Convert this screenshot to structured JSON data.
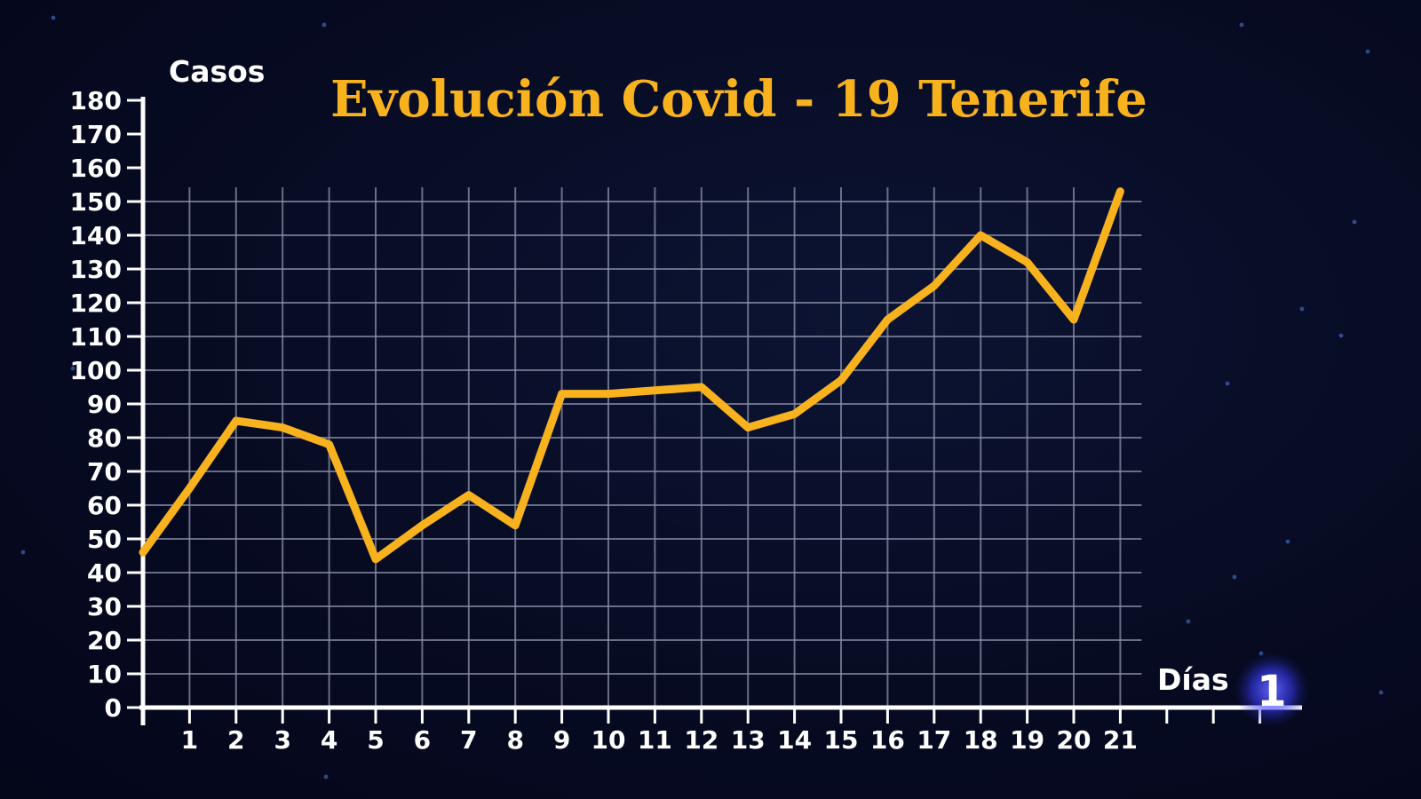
{
  "colors": {
    "background": "#060a22",
    "title": "#f7b21e",
    "line": "#f7b21e",
    "grid": "#8a8fa8",
    "axis": "#ffffff",
    "text": "#ffffff",
    "logo_glow": "#3a3cff"
  },
  "logo": {
    "text": "1"
  },
  "chart_data": {
    "type": "line",
    "title": "Evolución Covid - 19 Tenerife",
    "xlabel": "Días",
    "ylabel": "Casos",
    "x": [
      0,
      1,
      2,
      3,
      4,
      5,
      6,
      7,
      8,
      9,
      10,
      11,
      12,
      13,
      14,
      15,
      16,
      17,
      18,
      19,
      20,
      21
    ],
    "xticks": [
      "1",
      "2",
      "3",
      "4",
      "5",
      "6",
      "7",
      "8",
      "9",
      "10",
      "11",
      "12",
      "13",
      "14",
      "15",
      "16",
      "17",
      "18",
      "19",
      "20",
      "21"
    ],
    "yticks": [
      "0",
      "10",
      "20",
      "30",
      "40",
      "50",
      "60",
      "70",
      "80",
      "90",
      "100",
      "110",
      "120",
      "130",
      "140",
      "150",
      "160",
      "170",
      "180"
    ],
    "series": [
      {
        "values": [
          46,
          65,
          85,
          83,
          78,
          44,
          54,
          63,
          54,
          93,
          93,
          94,
          95,
          83,
          87,
          97,
          115,
          125,
          140,
          132,
          115,
          153
        ]
      }
    ],
    "ylim": [
      0,
      180
    ],
    "xlim": [
      0,
      21
    ],
    "grid": true,
    "legend": "none"
  }
}
